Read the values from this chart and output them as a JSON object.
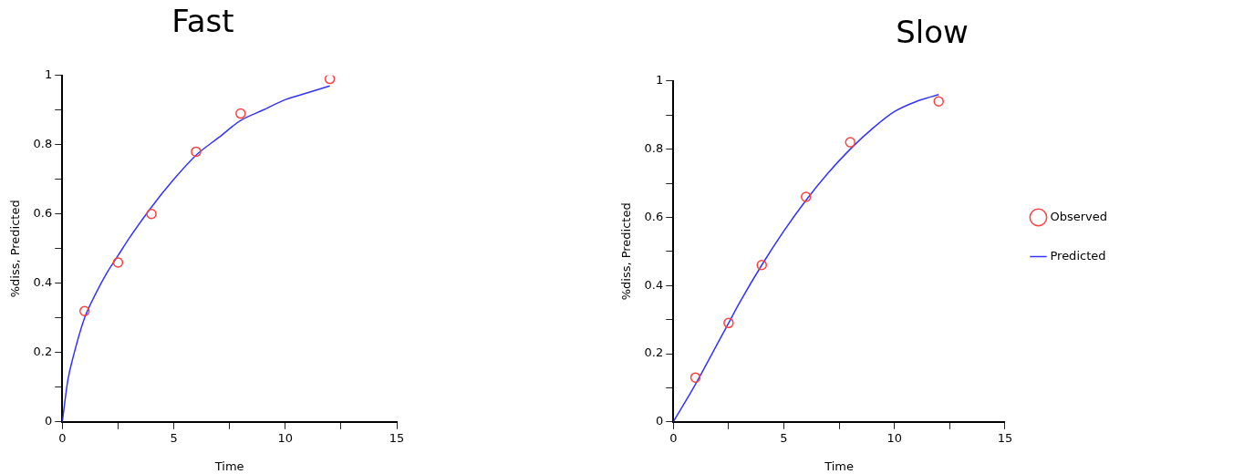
{
  "chart_data": [
    {
      "type": "scatter",
      "title": "Fast",
      "xlabel": "Time",
      "ylabel": "%diss, Predicted",
      "xlim": [
        0,
        15
      ],
      "ylim": [
        0,
        1
      ],
      "xticks": [
        0,
        {
          "value": 2.5,
          "label": null
        },
        5,
        {
          "value": 7.5,
          "label": null
        },
        10,
        {
          "value": 12.5,
          "label": null
        },
        15
      ],
      "yticks": [
        0,
        {
          "value": 0.1,
          "label": null
        },
        0.2,
        {
          "value": 0.3,
          "label": null
        },
        0.4,
        {
          "value": 0.5,
          "label": null
        },
        0.6,
        {
          "value": 0.7,
          "label": null
        },
        0.8,
        {
          "value": 0.9,
          "label": null
        },
        1
      ],
      "grid": false,
      "legend": false,
      "series": [
        {
          "type": "scatter",
          "marker": "circle",
          "color": "#ff4040",
          "x": [
            1,
            2.5,
            4,
            6,
            8,
            12
          ],
          "values": [
            0.32,
            0.46,
            0.6,
            0.78,
            0.89,
            0.99
          ]
        },
        {
          "type": "line",
          "marker": "none",
          "line_style": "solid",
          "color": "#3333ff",
          "x": [
            0,
            0.25,
            0.5,
            1,
            1.5,
            2,
            2.5,
            3,
            4,
            5,
            6,
            7,
            8,
            9,
            10,
            11,
            12
          ],
          "values": [
            0,
            0.12,
            0.19,
            0.3,
            0.37,
            0.43,
            0.48,
            0.53,
            0.62,
            0.7,
            0.77,
            0.82,
            0.87,
            0.9,
            0.93,
            0.95,
            0.97
          ]
        }
      ]
    },
    {
      "type": "scatter",
      "title": "Slow",
      "xlabel": "Time",
      "ylabel": "%diss, Predicted",
      "xlim": [
        0,
        15
      ],
      "ylim": [
        0,
        1
      ],
      "xticks": [
        0,
        {
          "value": 2.5,
          "label": null
        },
        5,
        {
          "value": 7.5,
          "label": null
        },
        10,
        {
          "value": 12.5,
          "label": null
        },
        15
      ],
      "yticks": [
        0,
        {
          "value": 0.1,
          "label": null
        },
        0.2,
        {
          "value": 0.3,
          "label": null
        },
        0.4,
        {
          "value": 0.5,
          "label": null
        },
        0.6,
        {
          "value": 0.7,
          "label": null
        },
        0.8,
        {
          "value": 0.9,
          "label": null
        },
        1
      ],
      "grid": false,
      "legend": "right",
      "series": [
        {
          "name": "Observed",
          "type": "scatter",
          "marker": "circle",
          "color": "#ff4040",
          "x": [
            1,
            2.5,
            4,
            6,
            8,
            12
          ],
          "values": [
            0.13,
            0.29,
            0.46,
            0.66,
            0.82,
            0.94
          ]
        },
        {
          "name": "Predicted",
          "type": "line",
          "marker": "none",
          "line_style": "solid",
          "color": "#3333ff",
          "x": [
            0,
            1,
            2,
            2.5,
            3,
            4,
            5,
            6,
            7,
            8,
            9,
            10,
            11,
            12
          ],
          "values": [
            0,
            0.11,
            0.23,
            0.29,
            0.35,
            0.46,
            0.56,
            0.65,
            0.73,
            0.8,
            0.86,
            0.91,
            0.94,
            0.96
          ]
        }
      ]
    }
  ]
}
